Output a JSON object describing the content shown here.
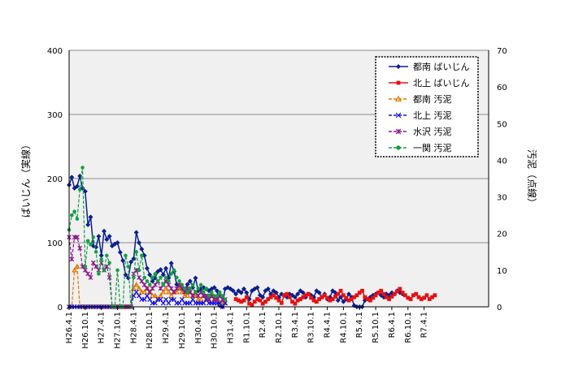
{
  "chart_data": {
    "type": "line",
    "left_axis": {
      "label": "ばいじん（実線）",
      "range": [
        0,
        400
      ],
      "ticks": [
        "0",
        "100",
        "200",
        "300",
        "400"
      ]
    },
    "right_axis": {
      "label": "汚泥（点線）",
      "range": [
        0,
        70
      ],
      "ticks": [
        "0",
        "10",
        "20",
        "30",
        "40",
        "50",
        "60",
        "70"
      ]
    },
    "x_axis": {
      "range": [
        0,
        156
      ],
      "tick_labels": [
        "H26.4.1",
        "H26.10.1",
        "H27.4.1",
        "H27.10.1",
        "H28.4.1",
        "H28.10.1",
        "H29.4.1",
        "H29.10.1",
        "H30.4.1",
        "H30.10.1",
        "H31.4.1",
        "R1.10.1",
        "R2.4.1",
        "R2.10.1",
        "R3.4.1",
        "R3.10.1",
        "R4.4.1",
        "R4.10.1",
        "R5.4.1",
        "R5.10.1",
        "R6.4.1",
        "R6.10.1",
        "R7.4.1"
      ],
      "tick_positions": [
        0,
        6,
        12,
        18,
        24,
        30,
        36,
        42,
        48,
        54,
        60,
        66,
        72,
        78,
        84,
        90,
        96,
        102,
        108,
        114,
        120,
        126,
        132
      ]
    },
    "grid": true,
    "legend_position": "top-right",
    "series": [
      {
        "name": "都南 ばいじん",
        "axis": "left",
        "color": "#0a1f8f",
        "marker": "diamond",
        "dash": "solid",
        "x": [
          0,
          1,
          2,
          3,
          4,
          5,
          6,
          7,
          8,
          9,
          10,
          11,
          12,
          13,
          14,
          15,
          16,
          17,
          18,
          19,
          20,
          21,
          22,
          23,
          24,
          25,
          26,
          27,
          28,
          29,
          30,
          31,
          32,
          33,
          34,
          35,
          36,
          37,
          38,
          39,
          40,
          41,
          42,
          43,
          44,
          45,
          46,
          47,
          48,
          49,
          50,
          51,
          52,
          53,
          54,
          55,
          56,
          57,
          58,
          59,
          60,
          61,
          62,
          63,
          64,
          65,
          66,
          67,
          68,
          69,
          70,
          71,
          72,
          73,
          74,
          75,
          76,
          77,
          78,
          79,
          80,
          81,
          82,
          83,
          84,
          85,
          86,
          87,
          88,
          89,
          90,
          91,
          92,
          93,
          94,
          95,
          96,
          97,
          98,
          99,
          100,
          101,
          102,
          103,
          104,
          105,
          106,
          107,
          108,
          109,
          110,
          111,
          112,
          113,
          114,
          115,
          116,
          117,
          118,
          119,
          120,
          121,
          122,
          123,
          124
        ],
        "y": [
          190,
          202,
          185,
          188,
          204,
          185,
          180,
          128,
          140,
          95,
          93,
          110,
          80,
          118,
          105,
          110,
          95,
          98,
          100,
          85,
          72,
          50,
          45,
          70,
          75,
          116,
          100,
          90,
          80,
          60,
          50,
          40,
          45,
          55,
          58,
          50,
          60,
          45,
          68,
          55,
          35,
          30,
          28,
          25,
          35,
          40,
          30,
          45,
          25,
          28,
          30,
          28,
          25,
          28,
          30,
          25,
          2,
          0,
          28,
          30,
          28,
          25,
          20,
          25,
          22,
          28,
          22,
          12,
          25,
          28,
          30,
          18,
          15,
          25,
          28,
          20,
          25,
          22,
          15,
          20,
          18,
          15,
          20,
          18,
          15,
          20,
          25,
          22,
          15,
          20,
          18,
          15,
          25,
          22,
          15,
          20,
          12,
          15,
          25,
          22,
          10,
          15,
          8,
          12,
          20,
          15,
          2,
          0,
          0,
          0,
          10,
          12,
          15,
          18,
          20,
          22,
          18,
          15,
          20,
          18,
          22,
          20,
          25,
          22,
          20
        ]
      },
      {
        "name": "北上 ばいじん",
        "axis": "left",
        "color": "#e81010",
        "marker": "square",
        "dash": "solid",
        "x": [
          62,
          63,
          64,
          65,
          66,
          67,
          68,
          69,
          70,
          71,
          72,
          73,
          74,
          75,
          76,
          77,
          78,
          79,
          80,
          81,
          82,
          83,
          84,
          85,
          86,
          87,
          88,
          89,
          90,
          91,
          92,
          93,
          94,
          95,
          96,
          97,
          98,
          99,
          100,
          101,
          102,
          103,
          104,
          105,
          106,
          107,
          108,
          109,
          110,
          111,
          112,
          113,
          114,
          115,
          116,
          117,
          118,
          119,
          120,
          121,
          122,
          123,
          124,
          125,
          126,
          127,
          128,
          129,
          130,
          131,
          132,
          133,
          134,
          135,
          136
        ],
        "y": [
          12,
          10,
          8,
          10,
          15,
          5,
          3,
          8,
          12,
          10,
          5,
          8,
          12,
          15,
          18,
          14,
          10,
          6,
          18,
          20,
          15,
          8,
          5,
          10,
          12,
          15,
          18,
          20,
          14,
          10,
          8,
          12,
          15,
          18,
          14,
          10,
          12,
          16,
          20,
          25,
          18,
          14,
          10,
          12,
          15,
          18,
          22,
          25,
          15,
          12,
          10,
          14,
          18,
          22,
          25,
          20,
          15,
          12,
          16,
          20,
          24,
          28,
          22,
          18,
          14,
          12,
          18,
          20,
          15,
          12,
          14,
          18,
          12,
          15,
          18
        ]
      },
      {
        "name": "都南 汚泥",
        "axis": "right",
        "color": "#e07800",
        "marker": "triangle",
        "dash": "dash",
        "x": [
          0,
          1,
          2,
          3,
          4,
          5,
          6,
          7,
          8,
          9,
          10,
          11,
          12,
          13,
          14,
          15,
          16,
          17,
          18,
          19,
          20,
          21,
          22,
          23,
          24,
          25,
          26,
          27,
          28,
          29,
          30,
          31,
          32,
          33,
          34,
          35,
          36,
          37,
          38,
          39,
          40,
          41,
          42,
          43,
          44,
          45,
          46,
          47,
          48,
          49,
          50,
          51,
          52,
          53,
          54,
          55,
          56,
          57,
          58
        ],
        "y": [
          0,
          0,
          10,
          11,
          0,
          0,
          0,
          0,
          0,
          0,
          0,
          0,
          0,
          0,
          0,
          0,
          0,
          0,
          0,
          0,
          0,
          0,
          0,
          0,
          5,
          6,
          5,
          4,
          4,
          5,
          4,
          3,
          3,
          2,
          3,
          4,
          5,
          4,
          3,
          4,
          4,
          5,
          4,
          3,
          3,
          4,
          3,
          3,
          2,
          2,
          3,
          2,
          2,
          3,
          2,
          2,
          1,
          1,
          1
        ]
      },
      {
        "name": "北上 汚泥",
        "axis": "right",
        "color": "#1010e8",
        "marker": "x",
        "dash": "dash",
        "x": [
          0,
          1,
          2,
          3,
          4,
          5,
          6,
          7,
          8,
          9,
          10,
          11,
          12,
          13,
          14,
          15,
          16,
          17,
          18,
          19,
          20,
          21,
          22,
          23,
          24,
          25,
          26,
          27,
          28,
          29,
          30,
          31,
          32,
          33,
          34,
          35,
          36,
          37,
          38,
          39,
          40,
          41,
          42,
          43,
          44,
          45,
          46,
          47,
          48,
          49,
          50,
          51,
          52,
          53,
          54,
          55,
          56,
          57,
          58
        ],
        "y": [
          0,
          0,
          0,
          0,
          0,
          0,
          0,
          0,
          0,
          0,
          0,
          0,
          0,
          0,
          0,
          0,
          0,
          0,
          0,
          0,
          0,
          0,
          0,
          0,
          3,
          4,
          3,
          2,
          2,
          3,
          2,
          1,
          1,
          2,
          2,
          1,
          2,
          1,
          2,
          2,
          1,
          1,
          2,
          1,
          1,
          1,
          2,
          1,
          1,
          1,
          1,
          2,
          1,
          1,
          1,
          1,
          1,
          0,
          1
        ]
      },
      {
        "name": "水沢 汚泥",
        "axis": "right",
        "color": "#8c1a8c",
        "marker": "star",
        "dash": "dash",
        "x": [
          0,
          1,
          2,
          3,
          4,
          5,
          6,
          7,
          8,
          9,
          10,
          11,
          12,
          13,
          14,
          15,
          16,
          17,
          18,
          19,
          20,
          21,
          22,
          23,
          24,
          25,
          26,
          27,
          28,
          29,
          30,
          31,
          32,
          33,
          34,
          35,
          36,
          37,
          38,
          39,
          40,
          41,
          42,
          43,
          44,
          45,
          46,
          47,
          48,
          49,
          50,
          51,
          52,
          53,
          54,
          55,
          56,
          57,
          58
        ],
        "y": [
          19,
          13,
          19,
          19,
          16,
          11,
          10,
          9,
          8,
          12,
          11,
          10,
          12,
          10,
          11,
          8,
          0,
          0,
          0,
          0,
          0,
          0,
          0,
          0,
          9,
          10,
          8,
          7,
          6,
          5,
          4,
          5,
          6,
          7,
          5,
          6,
          7,
          6,
          5,
          4,
          5,
          6,
          5,
          4,
          5,
          4,
          3,
          4,
          3,
          4,
          3,
          3,
          2,
          3,
          2,
          2,
          3,
          2,
          2
        ]
      },
      {
        "name": "一関 汚泥",
        "axis": "right",
        "color": "#10a040",
        "marker": "circle",
        "dash": "dash",
        "x": [
          0,
          1,
          2,
          3,
          4,
          5,
          6,
          7,
          8,
          9,
          10,
          11,
          12,
          13,
          14,
          15,
          16,
          17,
          18,
          19,
          20,
          21,
          22,
          23,
          24,
          25,
          26,
          27,
          28,
          29,
          30,
          31,
          32,
          33,
          34,
          35,
          36,
          37,
          38,
          39,
          40,
          41,
          42,
          43,
          44,
          45,
          46,
          47,
          48,
          49,
          50,
          51,
          52,
          53,
          54,
          55,
          56,
          57,
          58
        ],
        "y": [
          21,
          25,
          26,
          24,
          32,
          38,
          11,
          18,
          17,
          19,
          15,
          9,
          13,
          10,
          14,
          12,
          0,
          0,
          10,
          0,
          0,
          14,
          11,
          0,
          8,
          15,
          10,
          14,
          8,
          7,
          6,
          8,
          9,
          7,
          8,
          6,
          8,
          7,
          9,
          10,
          8,
          7,
          6,
          5,
          4,
          5,
          6,
          4,
          5,
          6,
          4,
          5,
          3,
          4,
          3,
          3,
          4,
          3,
          2
        ]
      }
    ]
  }
}
